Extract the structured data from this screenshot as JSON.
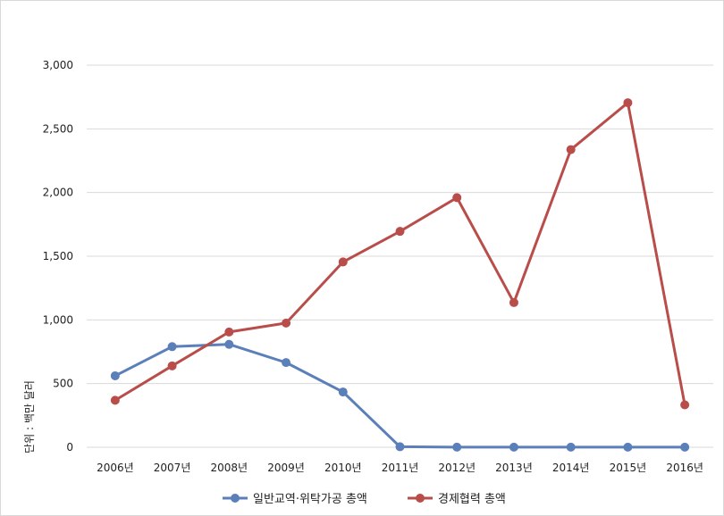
{
  "chart_data": {
    "type": "line",
    "categories": [
      "2006년",
      "2007년",
      "2008년",
      "2009년",
      "2010년",
      "2011년",
      "2012년",
      "2013년",
      "2014년",
      "2015년",
      "2016년"
    ],
    "series": [
      {
        "name": "일반교역·위탁가공 총액",
        "color": "#5b7fb9",
        "values": [
          561,
          790,
          808,
          665,
          434,
          4,
          1,
          1,
          1,
          1,
          1
        ]
      },
      {
        "name": "경제협력 총액",
        "color": "#b94d4a",
        "values": [
          369,
          639,
          905,
          975,
          1455,
          1695,
          1960,
          1136,
          2337,
          2705,
          333
        ]
      }
    ],
    "yticks": [
      "0",
      "500",
      "1,000",
      "1,500",
      "2,000",
      "2,500",
      "3,000"
    ],
    "ylim": [
      0,
      3000
    ],
    "ylabel": "단위 : 백만 달러",
    "xlabel": "",
    "grid": true,
    "legend_position": "bottom"
  }
}
